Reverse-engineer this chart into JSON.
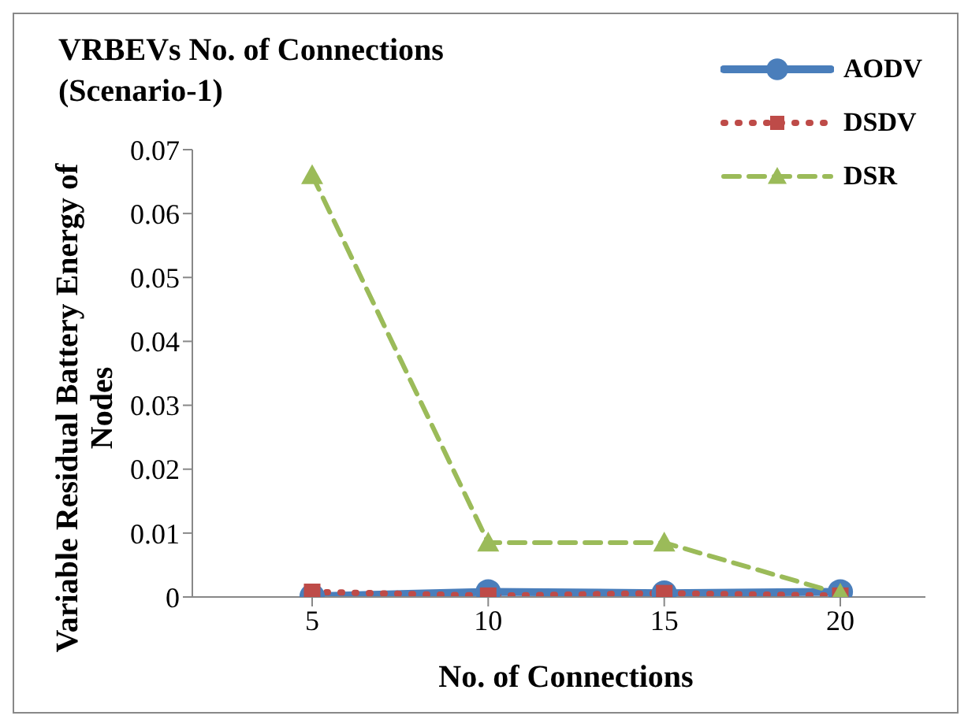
{
  "chart_data": {
    "type": "line",
    "title": "VRBEVs No. of Connections\n(Scenario-1)",
    "xlabel": "No. of Connections",
    "ylabel": "Variable Residual Battery Energy of Nodes",
    "categories": [
      "5",
      "10",
      "15",
      "20"
    ],
    "series": [
      {
        "name": "AODV",
        "color": "#4a7ebb",
        "values": [
          0.0001,
          0.0008,
          0.0006,
          0.0008
        ],
        "marker": "circle",
        "line_style": "solid"
      },
      {
        "name": "DSDV",
        "color": "#be4b48",
        "values": [
          0.0008,
          0.0002,
          0.0006,
          0.0002
        ],
        "marker": "square",
        "line_style": "dotted"
      },
      {
        "name": "DSR",
        "color": "#9bbb59",
        "values": [
          0.066,
          0.0085,
          0.0085,
          0.0005
        ],
        "marker": "triangle",
        "line_style": "dashed"
      }
    ],
    "ylim": [
      0,
      0.07
    ],
    "yticks": [
      0,
      0.01,
      0.02,
      0.03,
      0.04,
      0.05,
      0.06,
      0.07
    ],
    "grid": false,
    "legend": "top right"
  }
}
